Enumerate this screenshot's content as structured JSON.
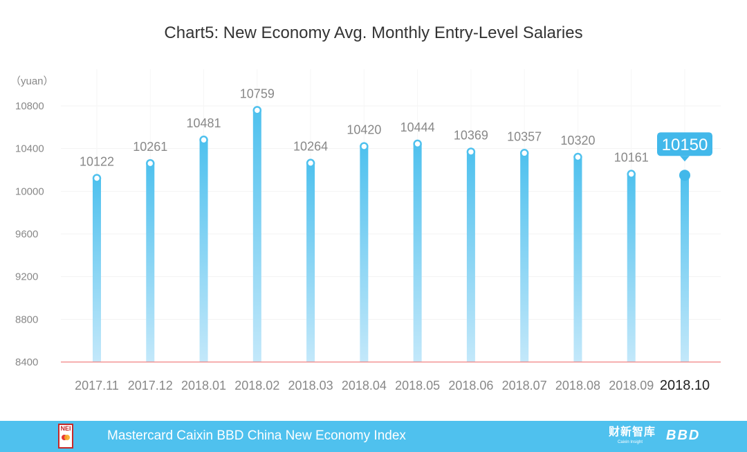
{
  "chart_data": {
    "type": "bar",
    "title": "Chart5:  New Economy Avg. Monthly Entry-Level Salaries",
    "ylabel": "（yuan）",
    "xlabel": "",
    "categories": [
      "2017.11",
      "2017.12",
      "2018.01",
      "2018.02",
      "2018.03",
      "2018.04",
      "2018.05",
      "2018.06",
      "2018.07",
      "2018.08",
      "2018.09",
      "2018.10"
    ],
    "values": [
      10122,
      10261,
      10481,
      10759,
      10264,
      10420,
      10444,
      10369,
      10357,
      10320,
      10161,
      10150
    ],
    "value_labels": [
      "10122",
      "10261",
      "10481",
      "10759",
      "10264",
      "10420",
      "10444",
      "10369",
      "10357",
      "10320",
      "10161",
      "10150"
    ],
    "yticks": [
      "8400",
      "8800",
      "9200",
      "9600",
      "10000",
      "10400",
      "10800"
    ],
    "ylim": [
      8400,
      11000
    ],
    "highlight_index": 11,
    "colors": {
      "bar_top": "#4fc1ee",
      "bar_bottom": "#c3e8fa",
      "baseline": "#f08080",
      "label": "#888888",
      "highlight": "#42b8ea"
    }
  },
  "footer": {
    "title": "Mastercard Caixin BBD China New Economy Index",
    "logo_text": "NEI",
    "brand_cn": "财新智库",
    "brand_cn_sub": "Caixin Insight",
    "brand_bbd": "BBD"
  }
}
